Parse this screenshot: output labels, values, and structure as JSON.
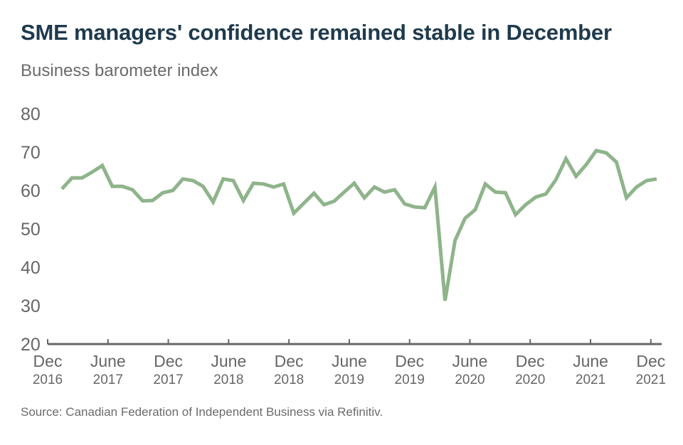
{
  "header": {
    "title": "SME managers' confidence remained stable in December",
    "subtitle": "Business barometer index"
  },
  "footer": {
    "source": "Source: Canadian Federation of Independent Business via Refinitiv."
  },
  "colors": {
    "line": "#8fb48b",
    "title": "#1f3a4d",
    "text": "#6b6b6b",
    "axis": "#666666"
  },
  "chart_data": {
    "type": "line",
    "title": "SME managers' confidence remained stable in December",
    "subtitle": "Business barometer index",
    "xlabel": "",
    "ylabel": "",
    "ylim": [
      20,
      80
    ],
    "yticks": [
      20,
      30,
      40,
      50,
      60,
      70,
      80
    ],
    "grid": false,
    "legend": "none",
    "x_start": "Jan 2017",
    "x_end": "Dec 2021",
    "x_frequency": "monthly",
    "xticks": [
      {
        "month": "Dec",
        "year": "2016",
        "index": -1
      },
      {
        "month": "June",
        "year": "2017",
        "index": 5
      },
      {
        "month": "Dec",
        "year": "2017",
        "index": 11
      },
      {
        "month": "June",
        "year": "2018",
        "index": 17
      },
      {
        "month": "Dec",
        "year": "2018",
        "index": 23
      },
      {
        "month": "June",
        "year": "2019",
        "index": 29
      },
      {
        "month": "Dec",
        "year": "2019",
        "index": 35
      },
      {
        "month": "June",
        "year": "2020",
        "index": 41
      },
      {
        "month": "Dec",
        "year": "2020",
        "index": 47
      },
      {
        "month": "June",
        "year": "2021",
        "index": 53
      },
      {
        "month": "Dec",
        "year": "2021",
        "index": 59
      }
    ],
    "series": [
      {
        "name": "Business barometer index",
        "values": [
          60.4,
          63.3,
          63.3,
          64.8,
          66.5,
          61.1,
          61.1,
          60.2,
          57.3,
          57.4,
          59.4,
          60.0,
          63.0,
          62.6,
          61.1,
          57.0,
          63.0,
          62.6,
          57.4,
          61.9,
          61.7,
          60.9,
          61.7,
          54.1,
          56.7,
          59.3,
          56.3,
          57.2,
          59.6,
          61.9,
          58.1,
          60.9,
          59.6,
          60.2,
          56.5,
          55.7,
          55.5,
          60.9,
          31.3,
          47.0,
          52.8,
          55.0,
          61.7,
          59.6,
          59.4,
          53.7,
          56.3,
          58.3,
          59.1,
          62.8,
          68.3,
          63.7,
          66.7,
          70.4,
          69.8,
          67.4,
          58.1,
          60.9,
          62.6,
          63.0
        ]
      }
    ]
  }
}
